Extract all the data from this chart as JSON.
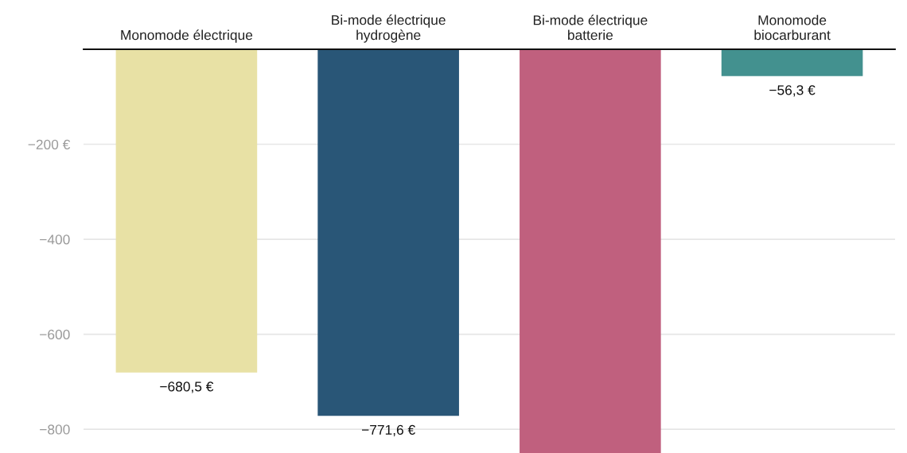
{
  "chart_data": {
    "type": "bar",
    "categories": [
      "Monomode électrique",
      "Bi-mode électrique\nhydrogène",
      "Bi-mode électrique\nbatterie",
      "Monomode\nbiocarburant"
    ],
    "values": [
      -680.5,
      -771.6,
      -850,
      -56.3
    ],
    "colors": [
      "#e8e1a5",
      "#295677",
      "#c0607e",
      "#43918f"
    ],
    "value_labels": [
      "−680,5 €",
      "−771,6 €",
      null,
      "−56,3 €"
    ],
    "ylim": [
      -850,
      0
    ],
    "yticks": [
      {
        "value": -800,
        "label": "−800"
      },
      {
        "value": -600,
        "label": "−600"
      },
      {
        "value": -400,
        "label": "−400"
      },
      {
        "value": -200,
        "label": "−200 €"
      }
    ],
    "grid": "y"
  }
}
